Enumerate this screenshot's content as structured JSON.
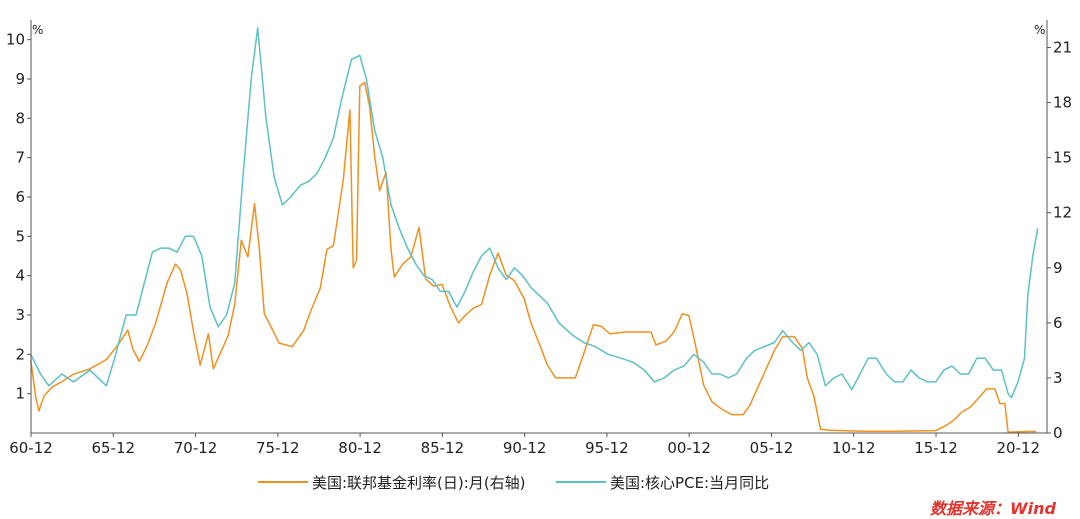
{
  "chart_data": {
    "type": "line",
    "left_axis": {
      "unit": "%",
      "range": [
        0,
        10.5
      ],
      "ticks": [
        "1",
        "2",
        "3",
        "4",
        "5",
        "6",
        "7",
        "8",
        "9",
        "10"
      ],
      "tick_values": [
        1,
        2,
        3,
        4,
        5,
        6,
        7,
        8,
        9,
        10
      ]
    },
    "right_axis": {
      "unit": "%",
      "range": [
        0,
        22.5
      ],
      "ticks": [
        "0",
        "3",
        "6",
        "9",
        "12",
        "15",
        "18",
        "21"
      ],
      "tick_values": [
        0,
        3,
        6,
        9,
        12,
        15,
        18,
        21
      ]
    },
    "x_axis": {
      "range": [
        1960.92,
        2022.3
      ],
      "ticks": [
        "60-12",
        "65-12",
        "70-12",
        "75-12",
        "80-12",
        "85-12",
        "90-12",
        "95-12",
        "00-12",
        "05-12",
        "10-12",
        "15-12",
        "20-12"
      ],
      "tick_values": [
        1960.92,
        1965.92,
        1970.92,
        1975.92,
        1980.92,
        1985.92,
        1990.92,
        1995.92,
        2000.92,
        2005.92,
        2010.92,
        2015.92,
        2020.92
      ]
    },
    "grid": false,
    "legend_position": "bottom",
    "series": [
      {
        "name": "美国:联邦基金利率(日):月(右轴)",
        "axis": "right",
        "color": "#f0901e",
        "points": [
          [
            1960.9,
            4.0
          ],
          [
            1961.2,
            2.0
          ],
          [
            1961.4,
            1.2
          ],
          [
            1961.7,
            2.0
          ],
          [
            1962.2,
            2.5
          ],
          [
            1962.8,
            2.8
          ],
          [
            1963.5,
            3.2
          ],
          [
            1964.5,
            3.5
          ],
          [
            1965.5,
            4.0
          ],
          [
            1966.2,
            4.8
          ],
          [
            1966.8,
            5.6
          ],
          [
            1967.1,
            4.6
          ],
          [
            1967.5,
            3.9
          ],
          [
            1968.0,
            4.8
          ],
          [
            1968.5,
            6.0
          ],
          [
            1969.2,
            8.2
          ],
          [
            1969.7,
            9.2
          ],
          [
            1970.0,
            8.9
          ],
          [
            1970.4,
            7.6
          ],
          [
            1970.8,
            5.5
          ],
          [
            1971.2,
            3.7
          ],
          [
            1971.7,
            5.4
          ],
          [
            1972.0,
            3.5
          ],
          [
            1972.5,
            4.5
          ],
          [
            1972.9,
            5.3
          ],
          [
            1973.3,
            7.0
          ],
          [
            1973.7,
            10.5
          ],
          [
            1974.1,
            9.6
          ],
          [
            1974.5,
            12.5
          ],
          [
            1974.8,
            10.0
          ],
          [
            1975.1,
            6.5
          ],
          [
            1975.5,
            5.8
          ],
          [
            1976.0,
            4.9
          ],
          [
            1976.8,
            4.7
          ],
          [
            1977.5,
            5.6
          ],
          [
            1977.9,
            6.6
          ],
          [
            1978.5,
            7.9
          ],
          [
            1978.9,
            10.0
          ],
          [
            1979.3,
            10.2
          ],
          [
            1979.9,
            13.8
          ],
          [
            1980.3,
            17.6
          ],
          [
            1980.5,
            9.0
          ],
          [
            1980.7,
            9.4
          ],
          [
            1980.9,
            18.9
          ],
          [
            1981.2,
            19.1
          ],
          [
            1981.5,
            17.8
          ],
          [
            1981.8,
            15.1
          ],
          [
            1982.1,
            13.2
          ],
          [
            1982.5,
            14.2
          ],
          [
            1982.8,
            10.0
          ],
          [
            1983.0,
            8.5
          ],
          [
            1983.5,
            9.2
          ],
          [
            1984.0,
            9.6
          ],
          [
            1984.5,
            11.2
          ],
          [
            1984.9,
            8.4
          ],
          [
            1985.4,
            8.0
          ],
          [
            1985.9,
            8.1
          ],
          [
            1986.4,
            6.9
          ],
          [
            1986.9,
            6.0
          ],
          [
            1987.3,
            6.4
          ],
          [
            1987.8,
            6.8
          ],
          [
            1988.3,
            7.0
          ],
          [
            1988.8,
            8.6
          ],
          [
            1989.3,
            9.8
          ],
          [
            1989.8,
            8.6
          ],
          [
            1990.3,
            8.3
          ],
          [
            1990.9,
            7.3
          ],
          [
            1991.3,
            6.0
          ],
          [
            1991.8,
            4.9
          ],
          [
            1992.3,
            3.7
          ],
          [
            1992.8,
            3.0
          ],
          [
            1993.5,
            3.0
          ],
          [
            1994.0,
            3.0
          ],
          [
            1994.5,
            4.3
          ],
          [
            1995.1,
            5.9
          ],
          [
            1995.6,
            5.8
          ],
          [
            1996.1,
            5.4
          ],
          [
            1997.0,
            5.5
          ],
          [
            1997.9,
            5.5
          ],
          [
            1998.6,
            5.5
          ],
          [
            1998.9,
            4.8
          ],
          [
            1999.5,
            5.0
          ],
          [
            2000.0,
            5.5
          ],
          [
            2000.5,
            6.5
          ],
          [
            2000.9,
            6.4
          ],
          [
            2001.3,
            4.8
          ],
          [
            2001.8,
            2.6
          ],
          [
            2002.3,
            1.7
          ],
          [
            2002.9,
            1.3
          ],
          [
            2003.5,
            1.0
          ],
          [
            2004.2,
            1.0
          ],
          [
            2004.6,
            1.5
          ],
          [
            2005.1,
            2.5
          ],
          [
            2005.6,
            3.5
          ],
          [
            2006.1,
            4.5
          ],
          [
            2006.6,
            5.25
          ],
          [
            2007.3,
            5.25
          ],
          [
            2007.8,
            4.6
          ],
          [
            2008.1,
            3.0
          ],
          [
            2008.5,
            2.0
          ],
          [
            2008.9,
            0.2
          ],
          [
            2009.5,
            0.15
          ],
          [
            2011.5,
            0.1
          ],
          [
            2013.5,
            0.1
          ],
          [
            2015.9,
            0.13
          ],
          [
            2016.5,
            0.4
          ],
          [
            2017.0,
            0.7
          ],
          [
            2017.5,
            1.15
          ],
          [
            2018.0,
            1.4
          ],
          [
            2018.5,
            1.9
          ],
          [
            2019.0,
            2.4
          ],
          [
            2019.5,
            2.4
          ],
          [
            2019.8,
            1.6
          ],
          [
            2020.1,
            1.6
          ],
          [
            2020.3,
            0.05
          ],
          [
            2021.5,
            0.08
          ],
          [
            2022.0,
            0.08
          ]
        ]
      },
      {
        "name": "美国:核心PCE:当月同比",
        "axis": "left",
        "color": "#5cc0c6",
        "points": [
          [
            1960.9,
            2.0
          ],
          [
            1961.5,
            1.5
          ],
          [
            1962.0,
            1.2
          ],
          [
            1962.8,
            1.5
          ],
          [
            1963.5,
            1.3
          ],
          [
            1964.5,
            1.6
          ],
          [
            1965.5,
            1.2
          ],
          [
            1966.0,
            1.9
          ],
          [
            1966.7,
            3.0
          ],
          [
            1967.3,
            3.0
          ],
          [
            1967.8,
            3.8
          ],
          [
            1968.3,
            4.6
          ],
          [
            1968.8,
            4.7
          ],
          [
            1969.3,
            4.7
          ],
          [
            1969.8,
            4.6
          ],
          [
            1970.3,
            5.0
          ],
          [
            1970.8,
            5.0
          ],
          [
            1971.3,
            4.5
          ],
          [
            1971.8,
            3.2
          ],
          [
            1972.3,
            2.7
          ],
          [
            1972.8,
            3.0
          ],
          [
            1973.3,
            3.8
          ],
          [
            1973.8,
            6.5
          ],
          [
            1974.3,
            9.0
          ],
          [
            1974.7,
            10.3
          ],
          [
            1975.2,
            8.0
          ],
          [
            1975.7,
            6.5
          ],
          [
            1976.2,
            5.8
          ],
          [
            1976.7,
            6.0
          ],
          [
            1977.3,
            6.3
          ],
          [
            1977.8,
            6.4
          ],
          [
            1978.3,
            6.6
          ],
          [
            1978.8,
            7.0
          ],
          [
            1979.3,
            7.5
          ],
          [
            1979.8,
            8.5
          ],
          [
            1980.4,
            9.5
          ],
          [
            1980.9,
            9.6
          ],
          [
            1981.3,
            9.0
          ],
          [
            1981.8,
            7.7
          ],
          [
            1982.3,
            7.0
          ],
          [
            1982.8,
            5.8
          ],
          [
            1983.3,
            5.2
          ],
          [
            1983.8,
            4.7
          ],
          [
            1984.3,
            4.3
          ],
          [
            1984.8,
            4.0
          ],
          [
            1985.3,
            3.9
          ],
          [
            1985.8,
            3.6
          ],
          [
            1986.3,
            3.6
          ],
          [
            1986.8,
            3.2
          ],
          [
            1987.3,
            3.6
          ],
          [
            1987.8,
            4.1
          ],
          [
            1988.3,
            4.5
          ],
          [
            1988.8,
            4.7
          ],
          [
            1989.3,
            4.2
          ],
          [
            1989.8,
            3.9
          ],
          [
            1990.3,
            4.2
          ],
          [
            1990.8,
            4.0
          ],
          [
            1991.3,
            3.7
          ],
          [
            1991.8,
            3.5
          ],
          [
            1992.3,
            3.3
          ],
          [
            1993.0,
            2.8
          ],
          [
            1993.8,
            2.5
          ],
          [
            1994.5,
            2.3
          ],
          [
            1995.2,
            2.2
          ],
          [
            1996.0,
            2.0
          ],
          [
            1996.8,
            1.9
          ],
          [
            1997.5,
            1.8
          ],
          [
            1998.2,
            1.6
          ],
          [
            1998.8,
            1.3
          ],
          [
            1999.4,
            1.4
          ],
          [
            2000.0,
            1.6
          ],
          [
            2000.6,
            1.7
          ],
          [
            2001.2,
            2.0
          ],
          [
            2001.8,
            1.8
          ],
          [
            2002.3,
            1.5
          ],
          [
            2002.8,
            1.5
          ],
          [
            2003.3,
            1.4
          ],
          [
            2003.8,
            1.5
          ],
          [
            2004.4,
            1.9
          ],
          [
            2004.9,
            2.1
          ],
          [
            2005.5,
            2.2
          ],
          [
            2006.1,
            2.3
          ],
          [
            2006.6,
            2.6
          ],
          [
            2007.2,
            2.3
          ],
          [
            2007.7,
            2.1
          ],
          [
            2008.2,
            2.3
          ],
          [
            2008.7,
            2.0
          ],
          [
            2009.2,
            1.2
          ],
          [
            2009.7,
            1.4
          ],
          [
            2010.2,
            1.5
          ],
          [
            2010.8,
            1.1
          ],
          [
            2011.3,
            1.5
          ],
          [
            2011.8,
            1.9
          ],
          [
            2012.3,
            1.9
          ],
          [
            2012.9,
            1.5
          ],
          [
            2013.4,
            1.3
          ],
          [
            2013.9,
            1.3
          ],
          [
            2014.4,
            1.6
          ],
          [
            2014.9,
            1.4
          ],
          [
            2015.4,
            1.3
          ],
          [
            2015.9,
            1.3
          ],
          [
            2016.4,
            1.6
          ],
          [
            2016.9,
            1.7
          ],
          [
            2017.4,
            1.5
          ],
          [
            2017.9,
            1.5
          ],
          [
            2018.4,
            1.9
          ],
          [
            2018.9,
            1.9
          ],
          [
            2019.4,
            1.6
          ],
          [
            2019.9,
            1.6
          ],
          [
            2020.3,
            1.0
          ],
          [
            2020.5,
            0.9
          ],
          [
            2020.9,
            1.3
          ],
          [
            2021.3,
            1.9
          ],
          [
            2021.5,
            3.5
          ],
          [
            2021.8,
            4.5
          ],
          [
            2022.1,
            5.2
          ]
        ]
      }
    ]
  },
  "source": "数据来源：Wind"
}
